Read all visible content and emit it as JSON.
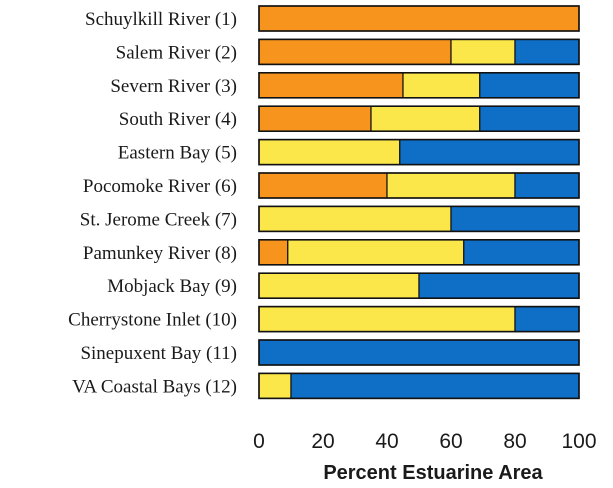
{
  "chart_data": {
    "type": "bar",
    "orientation": "horizontal",
    "stacked": true,
    "title": "",
    "xlabel": "Percent Estuarine Area",
    "ylabel": "",
    "xlim": [
      0,
      100
    ],
    "xticks": [
      0,
      20,
      40,
      60,
      80,
      100
    ],
    "grid": false,
    "legend": "none",
    "categories": [
      "Schuylkill River (1)",
      "Salem River (2)",
      "Severn River (3)",
      "South River (4)",
      "Eastern Bay (5)",
      "Pocomoke River (6)",
      "St. Jerome Creek (7)",
      "Pamunkey River (8)",
      "Mobjack Bay (9)",
      "Cherrystone Inlet (10)",
      "Sinepuxent Bay (11)",
      "VA Coastal Bays (12)"
    ],
    "series": [
      {
        "color": "#f7941d",
        "values": [
          100,
          60,
          45,
          35,
          0,
          40,
          0,
          9,
          0,
          0,
          0,
          0
        ]
      },
      {
        "color": "#fbe74a",
        "values": [
          0,
          20,
          24,
          34,
          44,
          40,
          60,
          55,
          50,
          80,
          0,
          10
        ]
      },
      {
        "color": "#0f6fc6",
        "values": [
          0,
          20,
          31,
          31,
          56,
          20,
          40,
          36,
          50,
          20,
          100,
          90
        ]
      }
    ]
  }
}
